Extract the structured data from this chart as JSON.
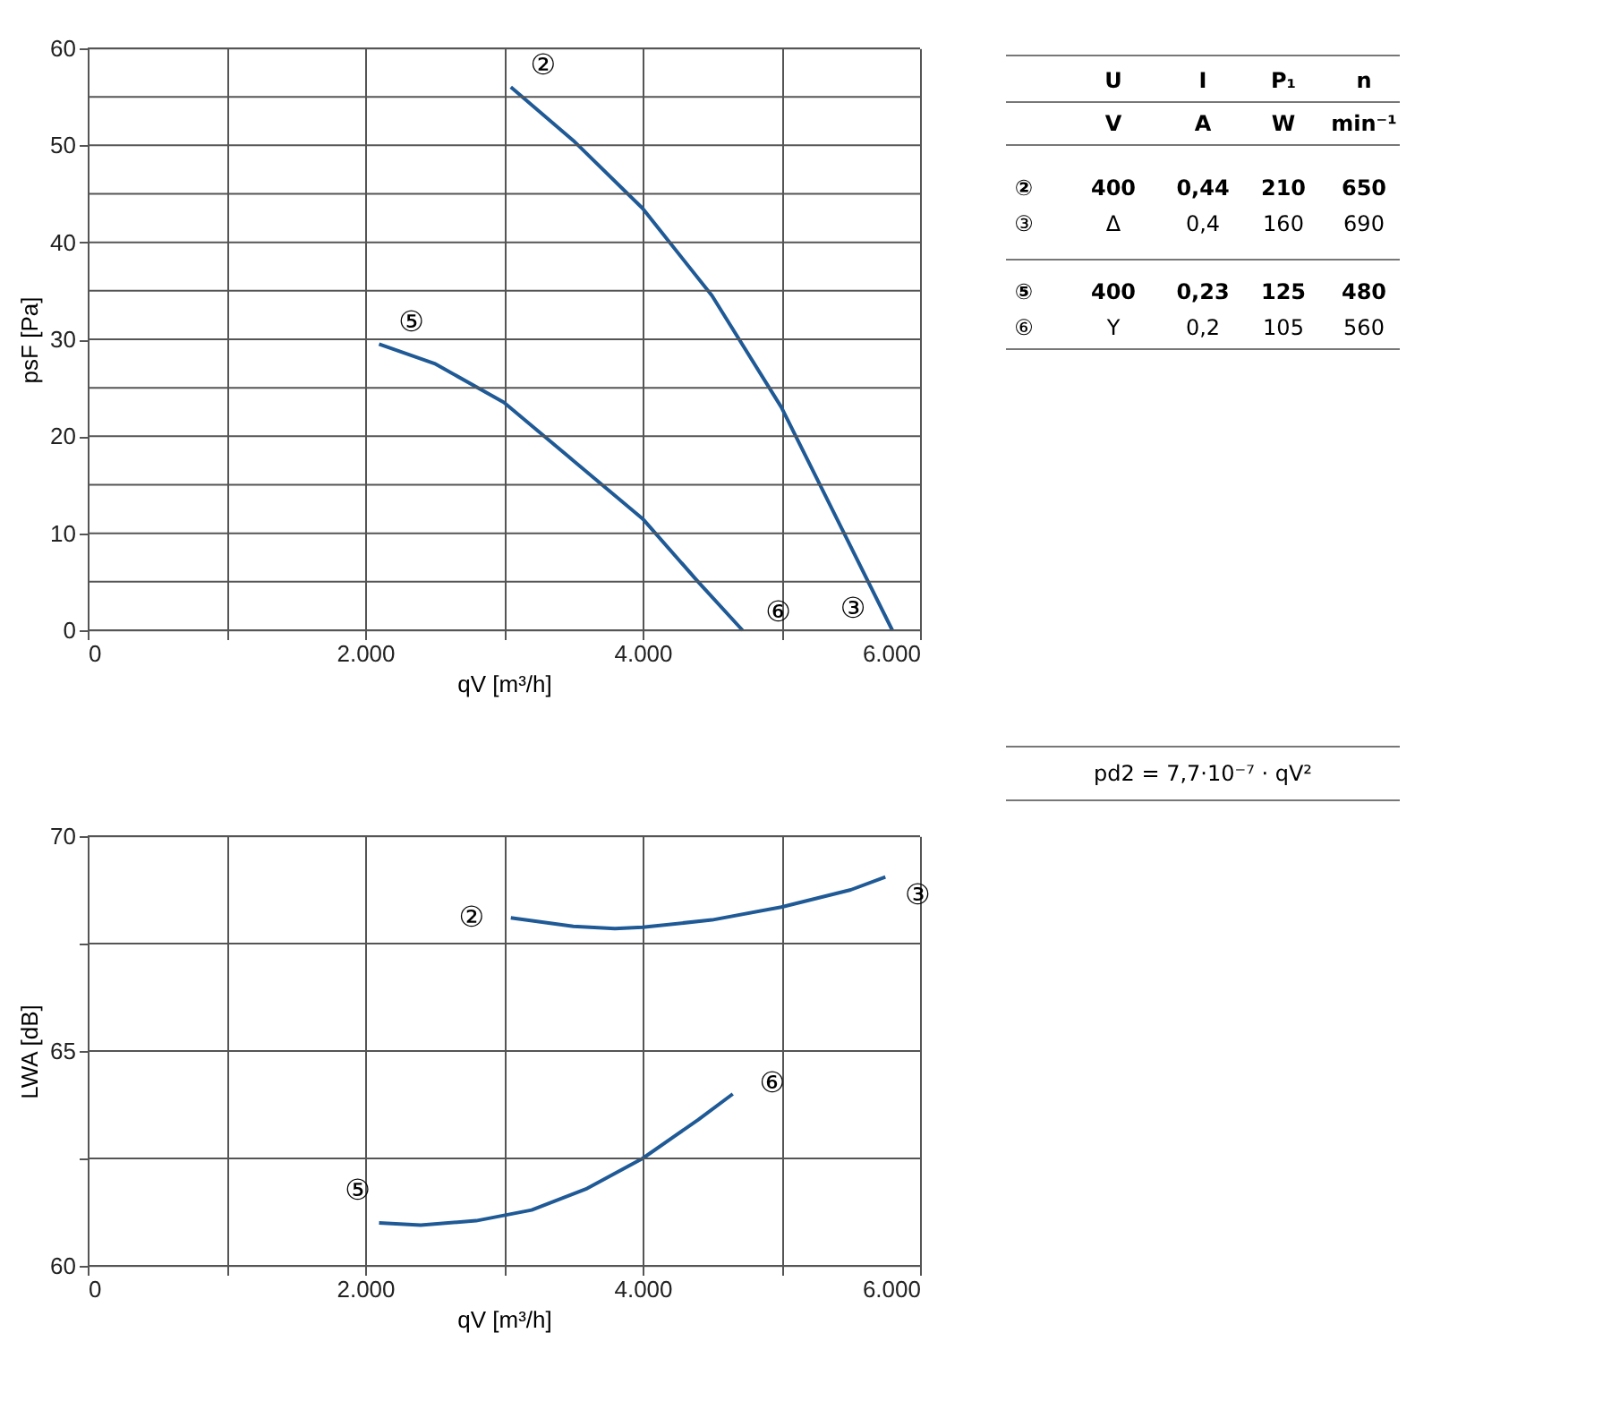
{
  "chart_data": [
    {
      "type": "line",
      "xlabel": "qV [m³/h]",
      "ylabel": "psF [Pa]",
      "xlim": [
        0,
        6000
      ],
      "ylim": [
        0,
        60
      ],
      "xticks": [
        0,
        {
          "value": 1000,
          "label": null
        },
        {
          "value": 2000,
          "label": "2.000"
        },
        {
          "value": 3000,
          "label": null
        },
        {
          "value": 4000,
          "label": "4.000"
        },
        {
          "value": 5000,
          "label": null
        },
        {
          "value": 6000,
          "label": "6.000"
        }
      ],
      "yticks": [
        0,
        {
          "value": 5,
          "label": null
        },
        10,
        {
          "value": 15,
          "label": null
        },
        20,
        {
          "value": 25,
          "label": null
        },
        30,
        {
          "value": 35,
          "label": null
        },
        40,
        {
          "value": 45,
          "label": null
        },
        50,
        {
          "value": 55,
          "label": null
        },
        60
      ],
      "grid": true,
      "marker": "none",
      "line_style": "solid",
      "series": [
        {
          "color": "#1f5a96",
          "x": [
            3050,
            3500,
            4000,
            4500,
            5000,
            5400,
            5800
          ],
          "values": [
            56,
            50.5,
            43.5,
            34.5,
            23,
            11.5,
            0
          ]
        },
        {
          "color": "#1f5a96",
          "x": [
            2100,
            2500,
            3000,
            3500,
            4000,
            4400,
            4720
          ],
          "values": [
            29.5,
            27.5,
            23.5,
            17.5,
            11.5,
            5,
            0
          ]
        }
      ],
      "annotations": [
        "②",
        "③",
        "⑤",
        "⑥"
      ]
    },
    {
      "type": "line",
      "xlabel": "qV [m³/h]",
      "ylabel": "LWA [dB]",
      "xlim": [
        0,
        6000
      ],
      "ylim": [
        60,
        70
      ],
      "xticks": [
        0,
        {
          "value": 1000,
          "label": null
        },
        {
          "value": 2000,
          "label": "2.000"
        },
        {
          "value": 3000,
          "label": null
        },
        {
          "value": 4000,
          "label": "4.000"
        },
        {
          "value": 5000,
          "label": null
        },
        {
          "value": 6000,
          "label": "6.000"
        }
      ],
      "yticks": [
        60,
        {
          "value": 62.5,
          "label": null
        },
        65,
        {
          "value": 67.5,
          "label": null
        },
        70
      ],
      "grid": true,
      "marker": "none",
      "line_style": "solid",
      "series": [
        {
          "color": "#1f5a96",
          "x": [
            3050,
            3500,
            3800,
            4000,
            4500,
            5000,
            5500,
            5750
          ],
          "values": [
            68.1,
            67.9,
            67.85,
            67.88,
            68.05,
            68.35,
            68.75,
            69.05
          ]
        },
        {
          "color": "#1f5a96",
          "x": [
            2100,
            2400,
            2800,
            3200,
            3600,
            4000,
            4400,
            4650
          ],
          "values": [
            61.0,
            60.95,
            61.05,
            61.3,
            61.8,
            62.5,
            63.4,
            64.0
          ]
        }
      ],
      "annotations": [
        "②",
        "③",
        "⑤",
        "⑥"
      ]
    },
    {
      "type": "other",
      "annotations": [
        "\tU\tI\tP₁\tn",
        "\tV\tA\tW\tmin⁻¹",
        "②\t400\t0,44\t210\t650",
        "③\tΔ\t0,4\t160\t690",
        "⑤\t400\t0,23\t125\t480",
        "⑥\tY\t0,2\t105\t560",
        "pd2 = 7,7·10⁻⁷ · qV²"
      ]
    }
  ]
}
